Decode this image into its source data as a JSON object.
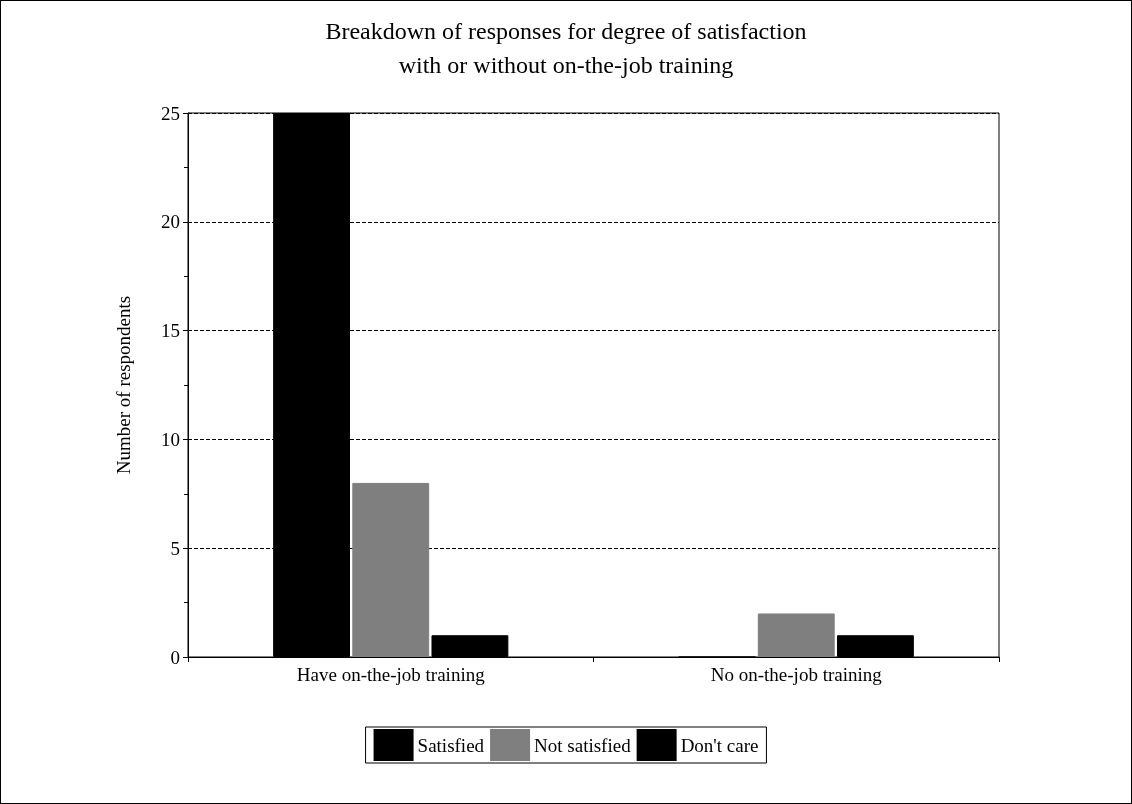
{
  "chart_data": {
    "type": "bar",
    "title": "Breakdown of responses for degree of satisfaction\nwith or without on-the-job training",
    "ylabel": "Number of respondents",
    "categories": [
      "Have on-the-job training",
      "No on-the-job training"
    ],
    "series": [
      {
        "name": "Satisfied",
        "color": "#000000",
        "values": [
          25,
          0
        ]
      },
      {
        "name": "Not satisfied",
        "color": "#7f7f7f",
        "values": [
          8,
          2
        ]
      },
      {
        "name": "Don't care",
        "color": "#000000",
        "values": [
          1,
          1
        ]
      }
    ],
    "ylim": [
      0,
      25
    ],
    "yticks": [
      0,
      5,
      10,
      15,
      20,
      25
    ],
    "grid": "y",
    "legend": "bottom"
  }
}
